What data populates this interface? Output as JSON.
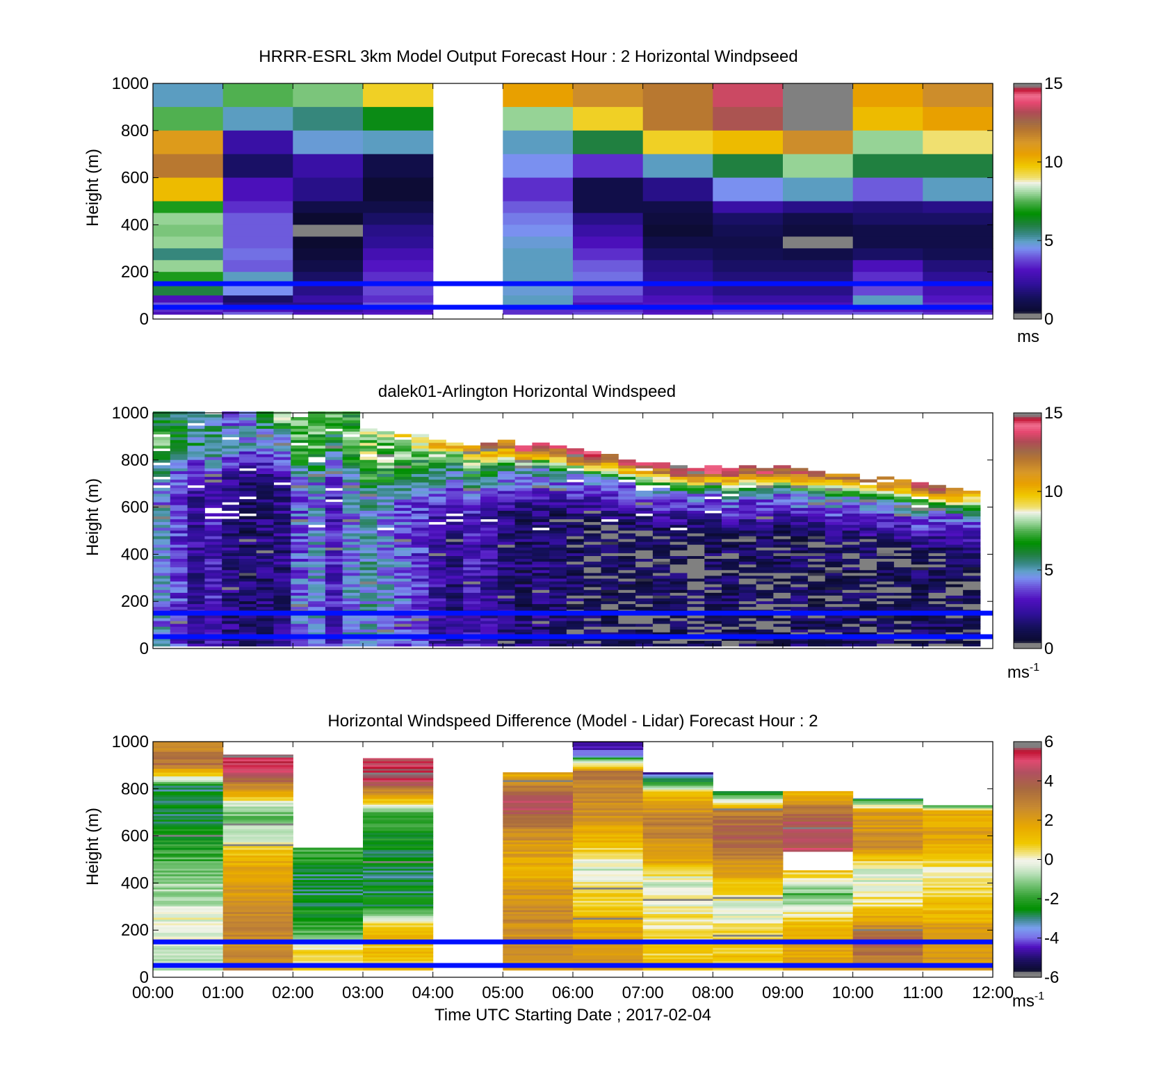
{
  "chart_data": [
    {
      "type": "heatmap",
      "title": "HRRR-ESRL 3km Model Output   Forecast Hour : 2 Horizontal Windpseed",
      "ylabel": "Height (m)",
      "xlabel": "",
      "x_ticks": [
        "00:00",
        "01:00",
        "02:00",
        "03:00",
        "04:00",
        "05:00",
        "06:00",
        "07:00",
        "08:00",
        "09:00",
        "10:00",
        "11:00",
        "12:00"
      ],
      "x_tick_labels_shown": false,
      "y_ticks": [
        0,
        200,
        400,
        600,
        800,
        1000
      ],
      "ylim": [
        0,
        1000
      ],
      "colorbar": {
        "min": 0,
        "max": 15,
        "ticks": [
          0,
          5,
          10,
          15
        ],
        "unit": "ms",
        "colormap": "windspeed"
      },
      "reference_lines_m": [
        50,
        150
      ],
      "columns_hours": [
        0,
        1,
        2,
        3,
        4,
        5,
        6,
        7,
        8,
        9,
        10,
        11
      ],
      "levels_top_m": [
        1000,
        900,
        800,
        700,
        600,
        500,
        450,
        400,
        350,
        300,
        250,
        200,
        150,
        100,
        70,
        50,
        40,
        30
      ],
      "values": [
        [
          5.0,
          7.5,
          11.0,
          12.0,
          10.0,
          7.0,
          8.0,
          7.8,
          8.0,
          5.5,
          8.0,
          7.0,
          6.0,
          3.0,
          4.0,
          2.5,
          3.5,
          3.0
        ],
        [
          7.5,
          5.0,
          2.5,
          1.5,
          3.0,
          3.5,
          4.0,
          4.0,
          4.0,
          4.2,
          4.0,
          5.0,
          4.5,
          1.5,
          2.0,
          2.5,
          3.0,
          4.0
        ],
        [
          7.8,
          5.5,
          4.8,
          2.5,
          2.0,
          1.0,
          0.5,
          0.0,
          0.5,
          0.7,
          1.0,
          1.5,
          2.0,
          2.5,
          2.0,
          1.5,
          2.5,
          3.0
        ],
        [
          9.5,
          6.5,
          5.0,
          1.0,
          0.6,
          1.0,
          1.5,
          2.0,
          2.2,
          2.8,
          3.2,
          3.5,
          3.8,
          3.5,
          4.0,
          3.5,
          3.0,
          3.2
        ],
        [
          null,
          null,
          null,
          null,
          null,
          null,
          null,
          null,
          null,
          null,
          null,
          null,
          null,
          null,
          null,
          null,
          null,
          null
        ],
        [
          10.5,
          8.0,
          5.0,
          4.5,
          3.5,
          4.0,
          4.3,
          4.5,
          4.8,
          5.0,
          5.0,
          5.0,
          4.8,
          5.0,
          5.0,
          4.5,
          3.5,
          3.5
        ],
        [
          11.5,
          9.5,
          6.0,
          3.5,
          1.0,
          1.0,
          2.0,
          2.5,
          3.0,
          3.5,
          4.0,
          4.2,
          4.0,
          3.5,
          3.0,
          3.2,
          3.5,
          3.8
        ],
        [
          12.0,
          12.0,
          9.5,
          5.0,
          2.0,
          1.0,
          0.8,
          0.6,
          1.0,
          1.5,
          2.0,
          2.2,
          2.5,
          3.0,
          3.2,
          3.4,
          3.0,
          3.2
        ],
        [
          13.5,
          13.0,
          10.0,
          6.0,
          4.5,
          2.5,
          1.5,
          1.2,
          1.0,
          1.2,
          1.5,
          1.8,
          2.0,
          2.5,
          3.0,
          3.2,
          3.5,
          3.8
        ],
        [
          15.0,
          15.0,
          11.5,
          8.0,
          5.0,
          2.0,
          1.0,
          0.8,
          0.0,
          1.0,
          1.5,
          1.8,
          2.0,
          2.5,
          3.0,
          3.2,
          3.5,
          3.8
        ],
        [
          10.5,
          10.0,
          8.0,
          6.0,
          4.0,
          1.8,
          1.5,
          1.0,
          1.0,
          1.5,
          3.0,
          3.5,
          3.8,
          5.0,
          5.0,
          3.5,
          3.2,
          4.0
        ],
        [
          11.5,
          10.5,
          9.0,
          6.0,
          5.0,
          2.0,
          1.5,
          1.0,
          1.0,
          1.2,
          1.8,
          2.2,
          2.8,
          3.2,
          3.5,
          3.2,
          3.0,
          3.5
        ]
      ]
    },
    {
      "type": "heatmap",
      "title": "dalek01-Arlington  Horizontal Windspeed",
      "ylabel": "Height (m)",
      "xlabel": "",
      "x_ticks": [
        "00:00",
        "01:00",
        "02:00",
        "03:00",
        "04:00",
        "05:00",
        "06:00",
        "07:00",
        "08:00",
        "09:00",
        "10:00",
        "11:00",
        "12:00"
      ],
      "x_tick_labels_shown": false,
      "y_ticks": [
        0,
        200,
        400,
        600,
        800,
        1000
      ],
      "ylim": [
        0,
        1000
      ],
      "colorbar": {
        "min": 0,
        "max": 15,
        "ticks": [
          0,
          5,
          10,
          15
        ],
        "unit": "ms",
        "unit_superscript": "-1",
        "colormap": "windspeed"
      },
      "reference_lines_m": [
        50,
        150
      ],
      "columns_step_hours": 0.25,
      "column_data_top_m": [
        1000,
        1000,
        1000,
        1000,
        1000,
        1000,
        1000,
        1000,
        980,
        1000,
        1000,
        1000,
        930,
        920,
        910,
        900,
        880,
        870,
        860,
        870,
        880,
        860,
        870,
        860,
        840,
        830,
        820,
        800,
        790,
        780,
        770,
        760,
        770,
        760,
        770,
        760,
        770,
        760,
        750,
        740,
        740,
        730,
        720,
        710,
        700,
        690,
        680,
        670
      ],
      "column_mean_low_ms": [
        4.5,
        3.5,
        2.5,
        3.0,
        2.0,
        1.5,
        1.8,
        2.0,
        4.0,
        4.5,
        3.0,
        4.5,
        5.0,
        4.5,
        4.0,
        3.5,
        2.5,
        2.0,
        3.0,
        2.5,
        2.0,
        1.5,
        1.8,
        1.5,
        1.2,
        1.0,
        1.0,
        0.8,
        0.8,
        1.0,
        1.0,
        0.8,
        1.0,
        1.2,
        1.0,
        1.0,
        0.8,
        1.2,
        1.0,
        1.2,
        1.0,
        1.2,
        1.0,
        1.0,
        1.2,
        1.0,
        1.0,
        1.0
      ],
      "jet_max_ms_near_top": [
        6,
        6,
        5,
        5,
        4,
        4,
        6,
        8,
        8,
        7,
        8,
        7,
        8,
        8,
        9,
        9,
        10,
        10,
        11,
        12,
        12,
        13,
        13,
        13,
        14,
        14,
        13,
        13,
        13,
        13,
        14,
        14,
        14,
        13,
        13,
        13,
        13,
        13,
        13,
        12,
        12,
        12,
        12,
        12,
        13,
        13,
        12,
        11
      ]
    },
    {
      "type": "heatmap",
      "title": "Horizontal Windspeed Difference (Model - Lidar) Forecast Hour : 2",
      "ylabel": "Height (m)",
      "xlabel": "Time UTC  Starting Date ; 2017-02-04",
      "x_ticks": [
        "00:00",
        "01:00",
        "02:00",
        "03:00",
        "04:00",
        "05:00",
        "06:00",
        "07:00",
        "08:00",
        "09:00",
        "10:00",
        "11:00",
        "12:00"
      ],
      "y_ticks": [
        0,
        200,
        400,
        600,
        800,
        1000
      ],
      "ylim": [
        0,
        1000
      ],
      "colorbar": {
        "min": -6,
        "max": 6,
        "ticks": [
          -6,
          -4,
          -2,
          0,
          2,
          4,
          6
        ],
        "unit": "ms",
        "unit_superscript": "-1",
        "colormap": "difference"
      },
      "reference_lines_m": [
        50,
        150
      ],
      "columns_hours": [
        0,
        1,
        2,
        3,
        4,
        5,
        6,
        7,
        8,
        9,
        10,
        11
      ],
      "column_data_range_m": [
        [
          30,
          1000
        ],
        [
          30,
          945
        ],
        [
          30,
          550
        ],
        [
          30,
          930
        ],
        null,
        [
          30,
          870
        ],
        [
          30,
          1000
        ],
        [
          30,
          870
        ],
        [
          30,
          790
        ],
        [
          30,
          790
        ],
        [
          30,
          760
        ],
        [
          30,
          730
        ]
      ],
      "profiles": [
        [
          [
            1000,
            2.5
          ],
          [
            900,
            3.5
          ],
          [
            800,
            -3.0
          ],
          [
            600,
            -2.5
          ],
          [
            400,
            -1.0
          ],
          [
            200,
            0.0
          ],
          [
            30,
            -1.0
          ]
        ],
        [
          [
            945,
            6.0
          ],
          [
            860,
            4.5
          ],
          [
            800,
            2.5
          ],
          [
            700,
            -1.5
          ],
          [
            600,
            -0.5
          ],
          [
            500,
            1.5
          ],
          [
            300,
            2.5
          ],
          [
            30,
            2.8
          ]
        ],
        [
          [
            550,
            -1.5
          ],
          [
            400,
            -3.0
          ],
          [
            200,
            -2.0
          ],
          [
            100,
            0.5
          ],
          [
            30,
            1.0
          ]
        ],
        [
          [
            930,
            4.5
          ],
          [
            860,
            6.0
          ],
          [
            780,
            2.5
          ],
          [
            700,
            -1.5
          ],
          [
            500,
            -3.0
          ],
          [
            300,
            -2.5
          ],
          [
            200,
            1.0
          ],
          [
            30,
            1.0
          ]
        ],
        [],
        [
          [
            870,
            1.5
          ],
          [
            800,
            3.0
          ],
          [
            730,
            4.5
          ],
          [
            600,
            2.5
          ],
          [
            450,
            1.5
          ],
          [
            300,
            2.5
          ],
          [
            30,
            2.5
          ]
        ],
        [
          [
            1000,
            -5.0
          ],
          [
            940,
            -3.5
          ],
          [
            870,
            3.0
          ],
          [
            700,
            2.5
          ],
          [
            550,
            1.0
          ],
          [
            450,
            -0.5
          ],
          [
            300,
            1.0
          ],
          [
            150,
            2.0
          ],
          [
            30,
            2.0
          ]
        ],
        [
          [
            870,
            -5.0
          ],
          [
            840,
            -3.0
          ],
          [
            780,
            1.0
          ],
          [
            650,
            3.0
          ],
          [
            500,
            2.0
          ],
          [
            400,
            -0.5
          ],
          [
            200,
            0.5
          ],
          [
            30,
            1.0
          ]
        ],
        [
          [
            790,
            -4.0
          ],
          [
            760,
            -1.0
          ],
          [
            700,
            3.0
          ],
          [
            600,
            4.0
          ],
          [
            450,
            2.0
          ],
          [
            300,
            -0.5
          ],
          [
            150,
            1.0
          ],
          [
            30,
            1.0
          ]
        ],
        [
          [
            790,
            1.0
          ],
          [
            700,
            3.5
          ],
          [
            620,
            4.5
          ],
          [
            530,
            null
          ],
          [
            450,
            1.0
          ],
          [
            350,
            -1.5
          ],
          [
            200,
            1.5
          ],
          [
            30,
            2.0
          ]
        ],
        [
          [
            760,
            -3.0
          ],
          [
            700,
            2.0
          ],
          [
            550,
            2.5
          ],
          [
            450,
            -0.5
          ],
          [
            300,
            0.5
          ],
          [
            150,
            4.0
          ],
          [
            30,
            2.5
          ]
        ],
        [
          [
            730,
            -2.5
          ],
          [
            700,
            1.5
          ],
          [
            600,
            2.0
          ],
          [
            450,
            0.0
          ],
          [
            300,
            1.0
          ],
          [
            150,
            2.5
          ],
          [
            30,
            2.0
          ]
        ]
      ]
    }
  ]
}
